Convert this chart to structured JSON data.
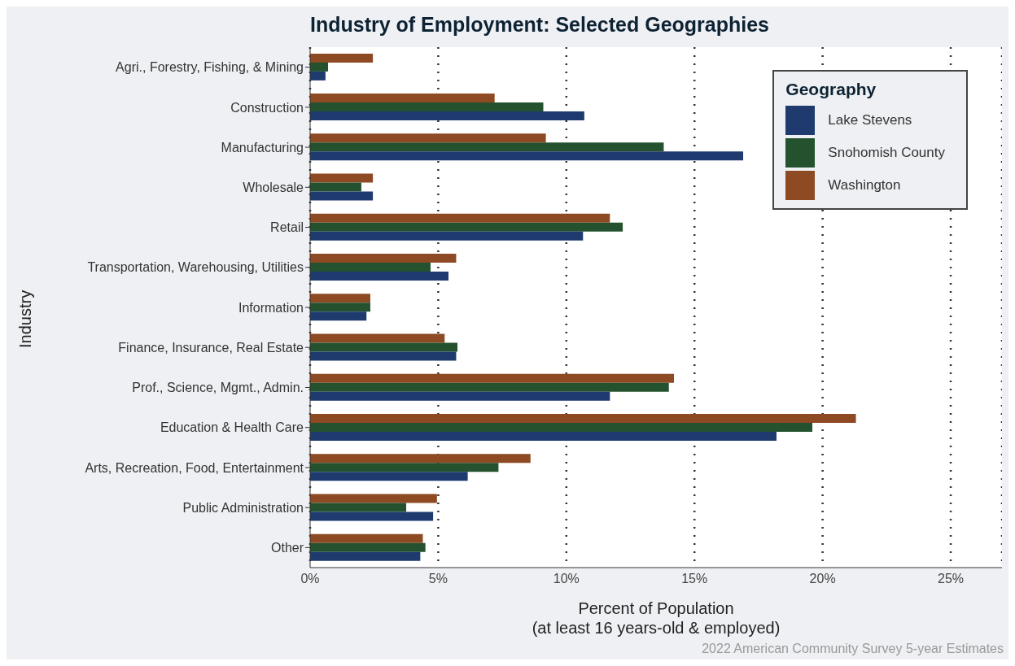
{
  "chart_data": {
    "type": "bar",
    "orientation": "horizontal",
    "title": "Industry of Employment: Selected Geographies",
    "xlabel": "Percent of Population\n(at least 16 years-old & employed)",
    "ylabel": "Industry",
    "legend_title": "Geography",
    "legend": "top right",
    "grid": "x",
    "annotations": [
      "2022 American Community Survey 5-year Estimates"
    ],
    "categories": [
      "Agri., Forestry, Fishing, & Mining",
      "Construction",
      "Manufacturing",
      "Wholesale",
      "Retail",
      "Transportation, Warehousing, Utilities",
      "Information",
      "Finance, Insurance, Real Estate",
      "Prof., Science, Mgmt., Admin.",
      "Education & Health Care",
      "Arts, Recreation, Food, Entertainment",
      "Public Administration",
      "Other"
    ],
    "xlim": [
      0,
      27
    ],
    "xticks": [
      {
        "value": 0,
        "label": "0%"
      },
      {
        "value": 5,
        "label": "5%"
      },
      {
        "value": 10,
        "label": "10%"
      },
      {
        "value": 15,
        "label": "15%"
      },
      {
        "value": 20,
        "label": "20%"
      },
      {
        "value": 25,
        "label": "25%"
      }
    ],
    "series": [
      {
        "name": "Lake Stevens",
        "color": "#1f3a6e",
        "values": [
          0.6,
          10.7,
          16.9,
          2.45,
          10.65,
          5.4,
          2.2,
          5.7,
          11.7,
          18.2,
          6.15,
          4.8,
          4.3
        ]
      },
      {
        "name": "Snohomish County",
        "color": "#24522e",
        "values": [
          0.7,
          9.1,
          13.8,
          2.0,
          12.2,
          4.7,
          2.35,
          5.75,
          14.0,
          19.6,
          7.35,
          3.75,
          4.5
        ]
      },
      {
        "name": "Washington",
        "color": "#8e4a23",
        "values": [
          2.45,
          7.2,
          9.2,
          2.45,
          11.7,
          5.7,
          2.35,
          5.25,
          14.2,
          21.3,
          8.6,
          4.95,
          4.4
        ]
      }
    ]
  }
}
